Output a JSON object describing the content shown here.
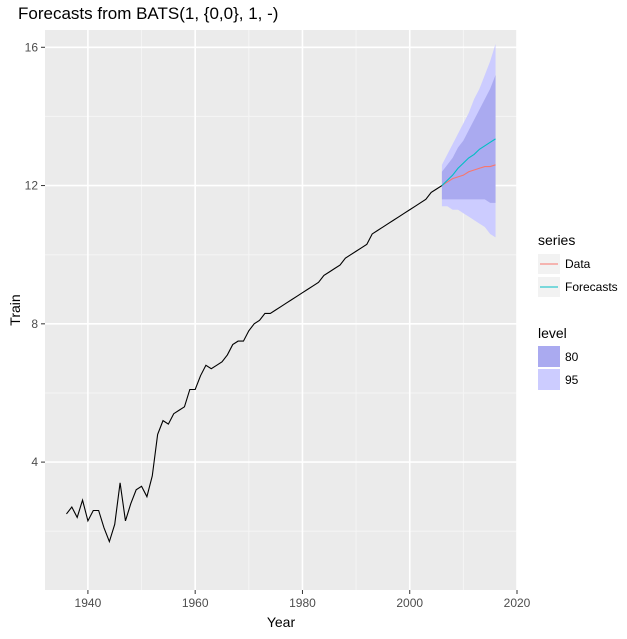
{
  "title": "Forecasts from BATS(1, {0,0}, 1, -)",
  "chart_data": {
    "type": "line",
    "title": "Forecasts from BATS(1, {0,0}, 1, -)",
    "xlabel": "Year",
    "ylabel": "Train",
    "xlim": [
      1932,
      2020
    ],
    "ylim": [
      0.3,
      16.5
    ],
    "x_ticks": [
      1940,
      1960,
      1980,
      2000,
      2020
    ],
    "y_ticks": [
      4,
      8,
      12,
      16
    ],
    "grid": true,
    "background": "#ebebeb",
    "legend_position": "right",
    "history": {
      "x": [
        1936,
        1937,
        1938,
        1939,
        1940,
        1941,
        1942,
        1943,
        1944,
        1945,
        1946,
        1947,
        1948,
        1949,
        1950,
        1951,
        1952,
        1953,
        1954,
        1955,
        1956,
        1957,
        1958,
        1959,
        1960,
        1961,
        1962,
        1963,
        1964,
        1965,
        1966,
        1967,
        1968,
        1969,
        1970,
        1971,
        1972,
        1973,
        1974,
        1975,
        1976,
        1977,
        1978,
        1979,
        1980,
        1981,
        1982,
        1983,
        1984,
        1985,
        1986,
        1987,
        1988,
        1989,
        1990,
        1991,
        1992,
        1993,
        1994,
        1995,
        1996,
        1997,
        1998,
        1999,
        2000,
        2001,
        2002,
        2003,
        2004,
        2005,
        2006
      ],
      "y": [
        2.5,
        2.7,
        2.4,
        2.9,
        2.3,
        2.6,
        2.6,
        2.1,
        1.7,
        2.2,
        3.4,
        2.3,
        2.8,
        3.2,
        3.3,
        3.0,
        3.6,
        4.8,
        5.2,
        5.1,
        5.4,
        5.5,
        5.6,
        6.1,
        6.1,
        6.5,
        6.8,
        6.7,
        6.8,
        6.9,
        7.1,
        7.4,
        7.5,
        7.5,
        7.8,
        8.0,
        8.1,
        8.3,
        8.3,
        8.4,
        8.5,
        8.6,
        8.7,
        8.8,
        8.9,
        9.0,
        9.1,
        9.2,
        9.4,
        9.5,
        9.6,
        9.7,
        9.9,
        10.0,
        10.1,
        10.2,
        10.3,
        10.6,
        10.7,
        10.8,
        10.9,
        11.0,
        11.1,
        11.2,
        11.3,
        11.4,
        11.5,
        11.6,
        11.8,
        11.9,
        12.0
      ],
      "color": "#000000"
    },
    "forecast_x": [
      2006,
      2007,
      2008,
      2009,
      2010,
      2011,
      2012,
      2013,
      2014,
      2015,
      2016
    ],
    "series": [
      {
        "name": "Data",
        "color": "#f8766d",
        "values": [
          12.0,
          12.1,
          12.2,
          12.25,
          12.3,
          12.4,
          12.45,
          12.5,
          12.55,
          12.55,
          12.6
        ]
      },
      {
        "name": "Forecasts",
        "color": "#00bfc4",
        "values": [
          12.0,
          12.15,
          12.3,
          12.5,
          12.65,
          12.8,
          12.9,
          13.05,
          13.15,
          13.25,
          13.35
        ]
      }
    ],
    "intervals": [
      {
        "level": "95",
        "color": "#ccccff",
        "lower": [
          11.4,
          11.4,
          11.3,
          11.3,
          11.2,
          11.1,
          11.0,
          10.9,
          10.8,
          10.6,
          10.5
        ],
        "upper": [
          12.6,
          12.9,
          13.2,
          13.5,
          13.8,
          14.1,
          14.5,
          14.8,
          15.2,
          15.6,
          16.1
        ]
      },
      {
        "level": "80",
        "color": "#aaaaf0",
        "lower": [
          11.6,
          11.6,
          11.6,
          11.6,
          11.6,
          11.6,
          11.6,
          11.6,
          11.6,
          11.5,
          11.5
        ],
        "upper": [
          12.4,
          12.6,
          12.8,
          13.1,
          13.3,
          13.6,
          13.9,
          14.2,
          14.5,
          14.8,
          15.2
        ]
      }
    ],
    "legend": {
      "series_title": "series",
      "series_items": [
        {
          "label": "Data",
          "color": "#f8766d"
        },
        {
          "label": "Forecasts",
          "color": "#00bfc4"
        }
      ],
      "level_title": "level",
      "level_items": [
        {
          "label": "80",
          "color": "#aaaaf0"
        },
        {
          "label": "95",
          "color": "#ccccff"
        }
      ]
    }
  }
}
